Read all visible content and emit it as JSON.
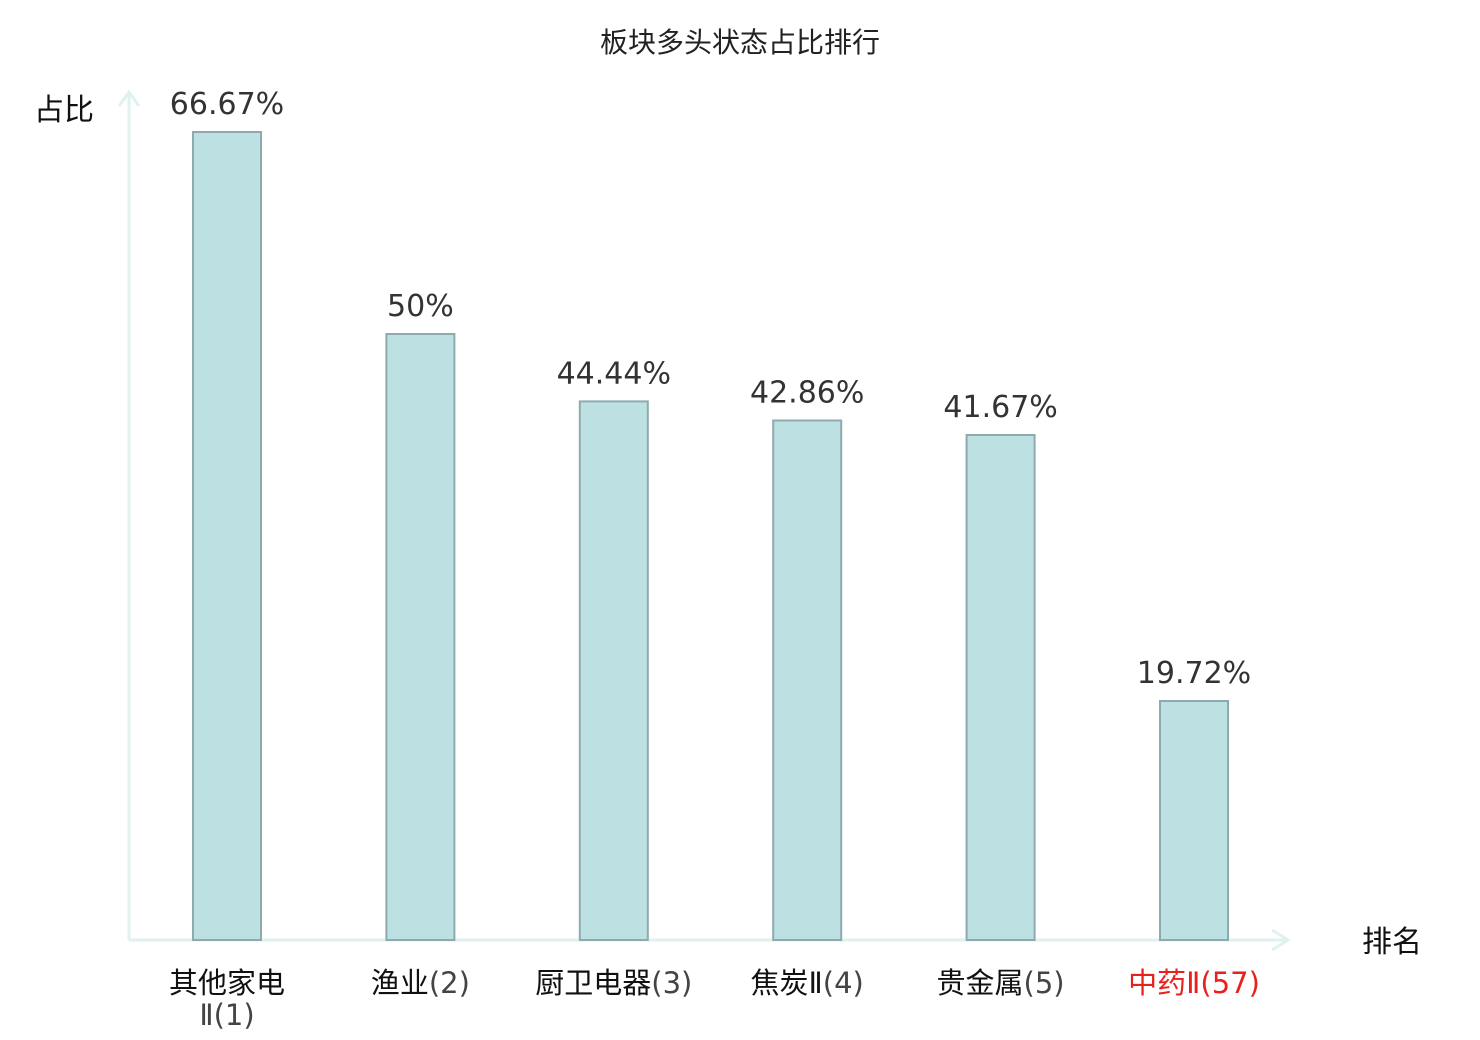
{
  "chart_data": {
    "type": "bar",
    "title": "板块多头状态占比排行",
    "ylabel": "占比",
    "xlabel": "排名",
    "ylim": [
      0,
      70
    ],
    "grid": false,
    "categories": [
      "其他家电Ⅱ",
      "渔业",
      "厨卫电器",
      "焦炭Ⅱ",
      "贵金属",
      "中药Ⅱ"
    ],
    "ranks": [
      "(1)",
      "(2)",
      "(3)",
      "(4)",
      "(5)",
      "(57)"
    ],
    "values": [
      66.67,
      50,
      44.44,
      42.86,
      41.67,
      19.72
    ],
    "value_labels": [
      "66.67%",
      "50%",
      "44.44%",
      "42.86%",
      "41.67%",
      "19.72%"
    ],
    "highlight_index": 5,
    "colors": {
      "bar_fill": "#bde1e3",
      "bar_stroke": "#8eaaae",
      "axis": "#e0f2ef",
      "label": "#111111",
      "rank": "#444444",
      "highlight": "#e8211d"
    }
  }
}
